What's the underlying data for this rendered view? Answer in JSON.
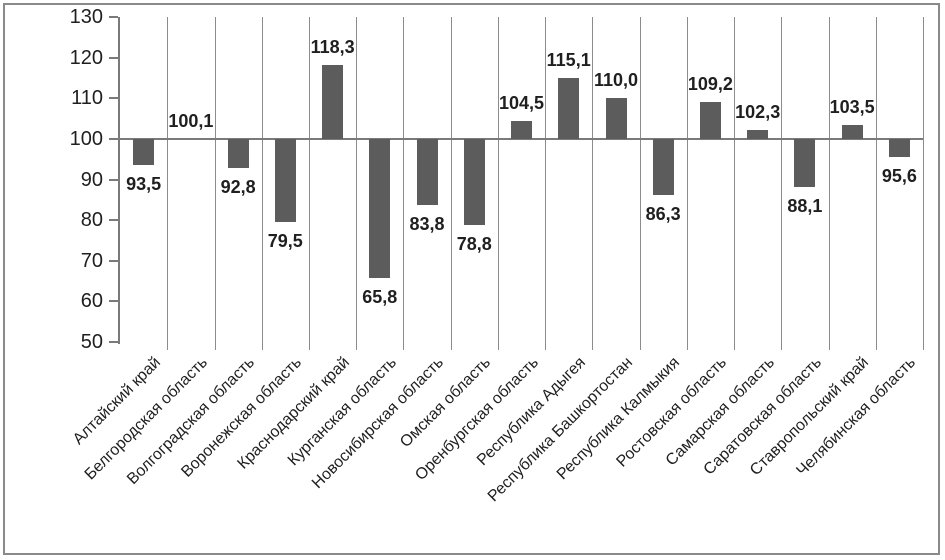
{
  "chart_data": {
    "type": "bar",
    "title": "",
    "xlabel": "",
    "ylabel": "",
    "categories": [
      "Алтайский край",
      "Белгородская область",
      "Волгоградская область",
      "Воронежская область",
      "Краснодарский край",
      "Курганская область",
      "Новосибирская область",
      "Омская область",
      "Оренбургская область",
      "Республика Адыгея",
      "Республика Башкортостан",
      "Республика Калмыкия",
      "Ростовская область",
      "Самарская область",
      "Саратовская область",
      "Ставропольский край",
      "Челябинская область"
    ],
    "values": [
      93.5,
      100.1,
      92.8,
      79.5,
      118.3,
      65.8,
      83.8,
      78.8,
      104.5,
      115.1,
      110.0,
      86.3,
      109.2,
      102.3,
      88.1,
      103.5,
      95.6
    ],
    "value_labels": [
      "93,5",
      "100,1",
      "92,8",
      "79,5",
      "118,3",
      "65,8",
      "83,8",
      "78,8",
      "104,5",
      "115,1",
      "110,0",
      "86,3",
      "109,2",
      "102,3",
      "88,1",
      "103,5",
      "95,6"
    ],
    "baseline": 100,
    "ylim": [
      50,
      130
    ],
    "yticks": [
      130,
      120,
      110,
      100,
      90,
      80,
      70,
      60,
      50
    ],
    "ytick_labels": [
      "130",
      "120",
      "110",
      "100",
      "90",
      "80",
      "70",
      "60",
      "50"
    ],
    "grid": "vertical-category-lines",
    "legend": "none",
    "bar_color": "#5c5c5c",
    "grid_color": "#8c8c8c",
    "axis_color": "#7a7a7a",
    "text_color": "#1f1f1f",
    "decimal_separator": ","
  }
}
